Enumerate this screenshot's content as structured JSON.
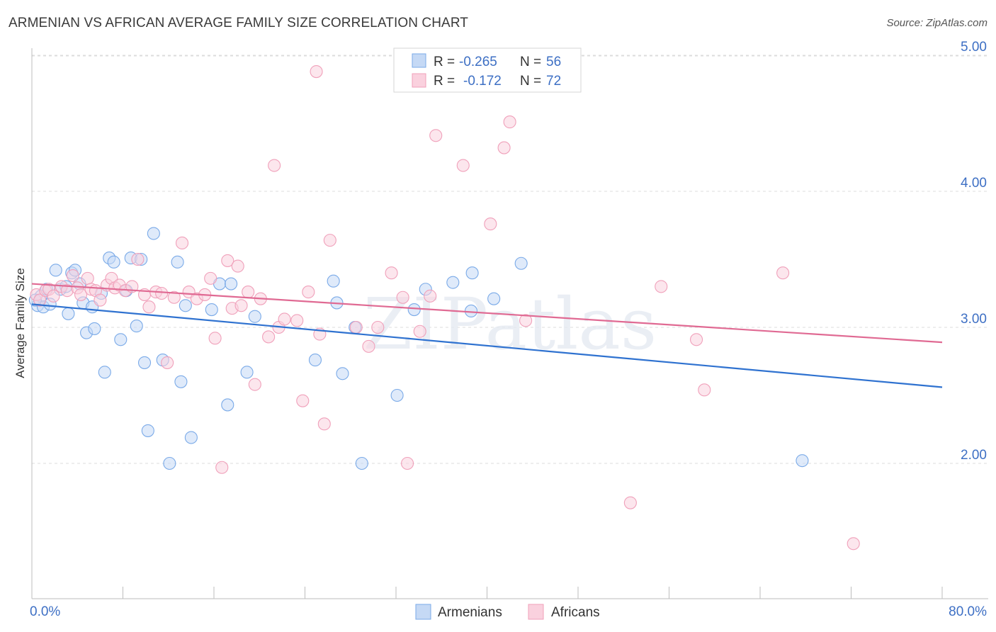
{
  "chart_data": {
    "type": "scatter",
    "title": "ARMENIAN VS AFRICAN AVERAGE FAMILY SIZE CORRELATION CHART",
    "source": "Source: ZipAtlas.com",
    "ylabel": "Average Family Size",
    "xlim": [
      0,
      80
    ],
    "ylim": [
      1.0,
      5.2
    ],
    "x_tick_labels": [
      "0.0%",
      "80.0%"
    ],
    "y_ticks": [
      2.0,
      3.0,
      4.0,
      5.0
    ],
    "y_tick_labels": [
      "2.00",
      "3.00",
      "4.00",
      "5.00"
    ],
    "grid": true,
    "watermark": "ZIPatlas",
    "legend": [
      {
        "r_label": "R =",
        "r_value": "-0.265",
        "n_label": "N =",
        "n_value": "56"
      },
      {
        "r_label": "R =",
        "r_value": "-0.172",
        "n_label": "N =",
        "n_value": "72"
      }
    ],
    "series": [
      {
        "name": "Armenians",
        "color": "#7aaae8",
        "fill": "#c5d9f5",
        "line_color": "#2f72d0",
        "trend": [
          [
            0,
            3.17
          ],
          [
            80,
            2.56
          ]
        ],
        "points": [
          [
            0.5,
            3.16
          ],
          [
            0.8,
            3.23
          ],
          [
            1.0,
            3.15
          ],
          [
            1.3,
            3.28
          ],
          [
            1.6,
            3.17
          ],
          [
            2.1,
            3.42
          ],
          [
            2.5,
            3.28
          ],
          [
            3.0,
            3.3
          ],
          [
            3.2,
            3.1
          ],
          [
            3.5,
            3.4
          ],
          [
            3.8,
            3.42
          ],
          [
            4.2,
            3.32
          ],
          [
            4.5,
            3.18
          ],
          [
            4.8,
            2.96
          ],
          [
            5.3,
            3.15
          ],
          [
            5.5,
            2.99
          ],
          [
            6.1,
            3.25
          ],
          [
            6.4,
            2.67
          ],
          [
            6.8,
            3.51
          ],
          [
            7.2,
            3.48
          ],
          [
            7.8,
            2.91
          ],
          [
            8.3,
            3.27
          ],
          [
            8.7,
            3.51
          ],
          [
            9.2,
            3.01
          ],
          [
            9.6,
            3.5
          ],
          [
            9.9,
            2.74
          ],
          [
            10.2,
            2.24
          ],
          [
            10.7,
            3.69
          ],
          [
            11.5,
            2.76
          ],
          [
            12.1,
            2.0
          ],
          [
            12.8,
            3.48
          ],
          [
            13.1,
            2.6
          ],
          [
            13.5,
            3.16
          ],
          [
            14.0,
            2.19
          ],
          [
            15.8,
            3.13
          ],
          [
            16.5,
            3.32
          ],
          [
            17.2,
            2.43
          ],
          [
            17.5,
            3.32
          ],
          [
            18.9,
            2.67
          ],
          [
            19.6,
            3.08
          ],
          [
            24.9,
            2.76
          ],
          [
            26.5,
            3.34
          ],
          [
            26.8,
            3.18
          ],
          [
            27.3,
            2.66
          ],
          [
            28.4,
            3.0
          ],
          [
            29.0,
            2.0
          ],
          [
            32.1,
            2.5
          ],
          [
            33.6,
            3.13
          ],
          [
            34.6,
            3.28
          ],
          [
            37.0,
            3.33
          ],
          [
            38.6,
            3.12
          ],
          [
            38.7,
            3.4
          ],
          [
            40.6,
            3.21
          ],
          [
            43.0,
            3.47
          ],
          [
            67.7,
            2.02
          ],
          [
            0.3,
            3.2
          ]
        ]
      },
      {
        "name": "Africans",
        "color": "#f0a0ba",
        "fill": "#fad1de",
        "line_color": "#e06a93",
        "trend": [
          [
            0,
            3.32
          ],
          [
            80,
            2.89
          ]
        ],
        "points": [
          [
            0.4,
            3.24
          ],
          [
            0.7,
            3.2
          ],
          [
            1.2,
            3.27
          ],
          [
            1.5,
            3.28
          ],
          [
            1.9,
            3.23
          ],
          [
            2.6,
            3.3
          ],
          [
            3.1,
            3.27
          ],
          [
            3.6,
            3.38
          ],
          [
            4.0,
            3.29
          ],
          [
            4.3,
            3.24
          ],
          [
            4.9,
            3.36
          ],
          [
            5.2,
            3.28
          ],
          [
            5.6,
            3.27
          ],
          [
            6.0,
            3.2
          ],
          [
            6.6,
            3.31
          ],
          [
            7.0,
            3.36
          ],
          [
            7.3,
            3.29
          ],
          [
            7.7,
            3.31
          ],
          [
            8.2,
            3.27
          ],
          [
            8.8,
            3.3
          ],
          [
            9.3,
            3.5
          ],
          [
            9.9,
            3.24
          ],
          [
            10.3,
            3.15
          ],
          [
            10.9,
            3.26
          ],
          [
            11.4,
            3.25
          ],
          [
            11.9,
            2.74
          ],
          [
            12.5,
            3.22
          ],
          [
            13.2,
            3.62
          ],
          [
            13.8,
            3.26
          ],
          [
            14.5,
            3.21
          ],
          [
            15.2,
            3.24
          ],
          [
            15.7,
            3.36
          ],
          [
            16.1,
            2.92
          ],
          [
            16.7,
            1.97
          ],
          [
            17.2,
            3.49
          ],
          [
            17.6,
            3.14
          ],
          [
            18.1,
            3.45
          ],
          [
            18.4,
            3.16
          ],
          [
            19.0,
            3.26
          ],
          [
            19.6,
            2.58
          ],
          [
            20.1,
            3.21
          ],
          [
            20.8,
            2.93
          ],
          [
            21.3,
            4.19
          ],
          [
            21.7,
            3.0
          ],
          [
            22.2,
            3.06
          ],
          [
            23.3,
            3.05
          ],
          [
            23.8,
            2.46
          ],
          [
            24.3,
            3.26
          ],
          [
            25.0,
            4.88
          ],
          [
            25.3,
            2.95
          ],
          [
            25.7,
            2.29
          ],
          [
            26.2,
            3.64
          ],
          [
            28.5,
            3.0
          ],
          [
            29.6,
            2.86
          ],
          [
            30.4,
            3.0
          ],
          [
            31.6,
            3.4
          ],
          [
            32.6,
            3.22
          ],
          [
            33.0,
            2.0
          ],
          [
            34.1,
            2.97
          ],
          [
            35.0,
            3.23
          ],
          [
            35.5,
            4.41
          ],
          [
            37.9,
            4.19
          ],
          [
            40.3,
            3.76
          ],
          [
            41.5,
            4.32
          ],
          [
            42.0,
            4.51
          ],
          [
            43.4,
            3.05
          ],
          [
            52.6,
            1.71
          ],
          [
            55.3,
            3.3
          ],
          [
            58.4,
            2.91
          ],
          [
            59.1,
            2.54
          ],
          [
            66.0,
            3.4
          ],
          [
            72.2,
            1.41
          ]
        ]
      }
    ]
  }
}
